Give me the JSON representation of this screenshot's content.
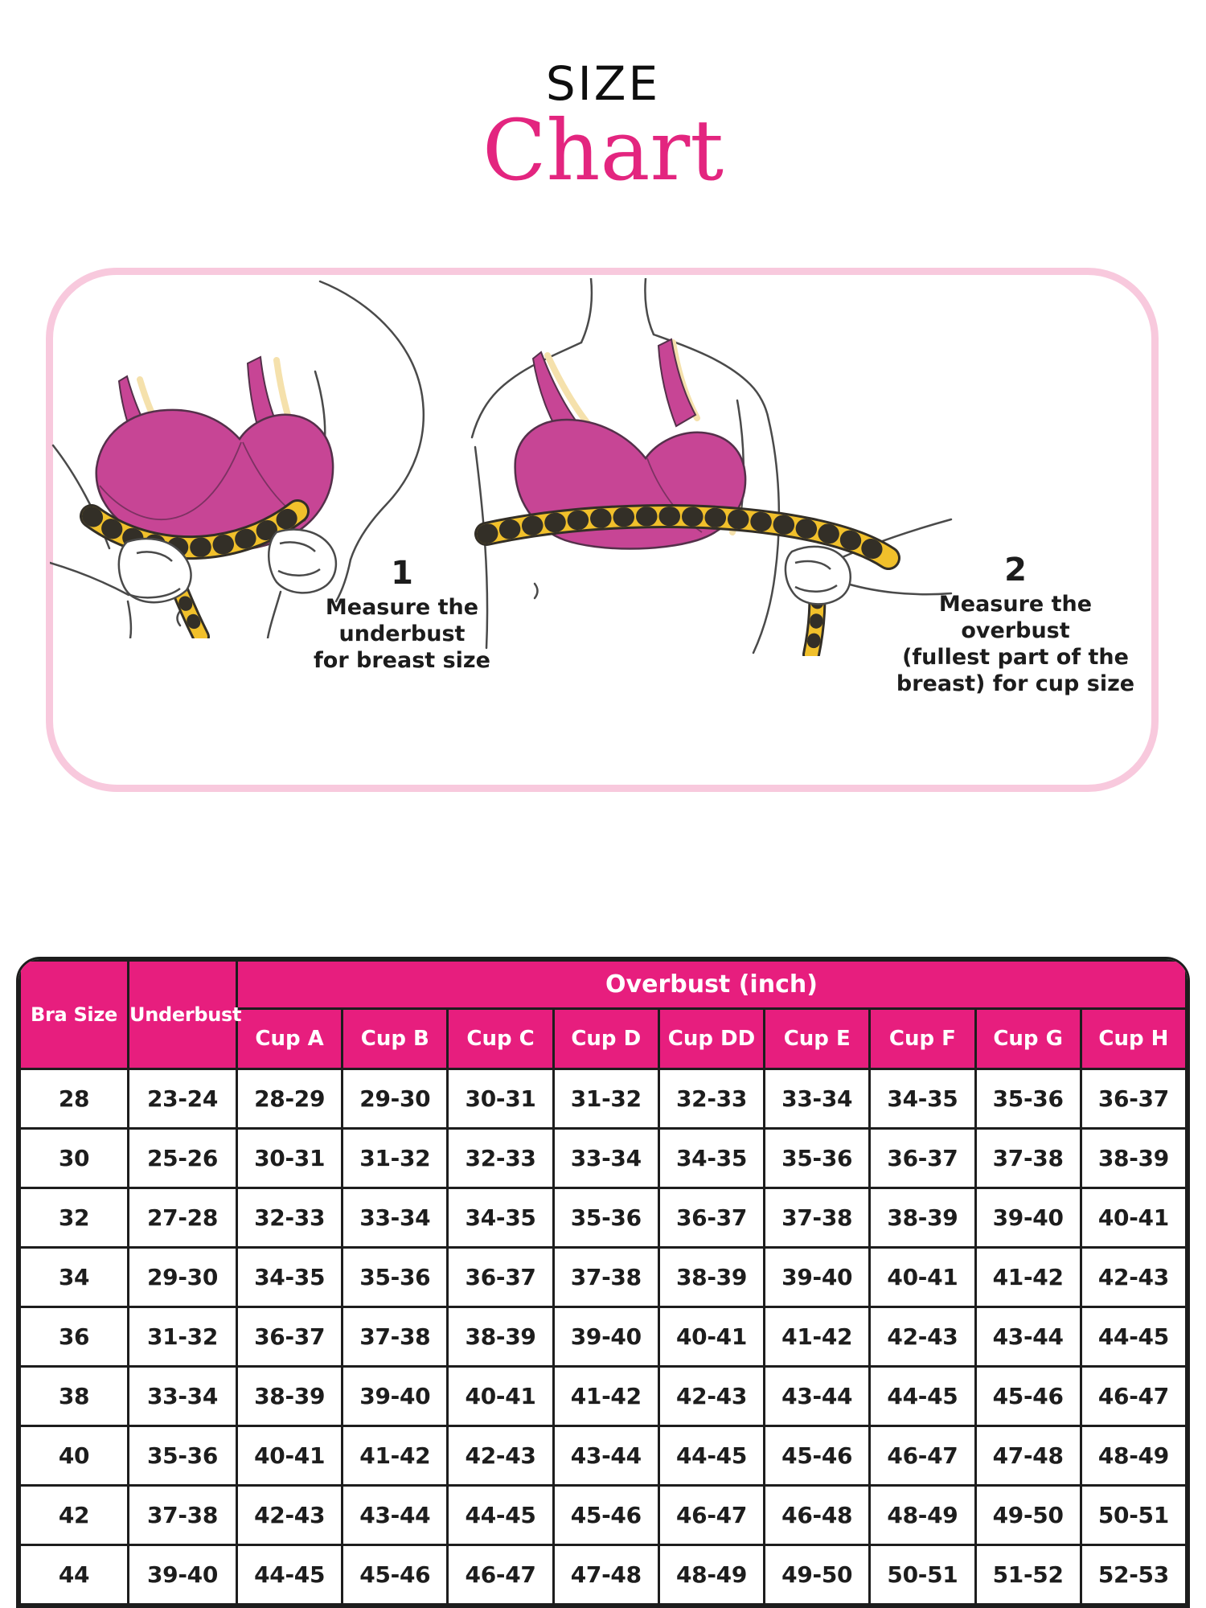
{
  "title": {
    "line1": "SIZE",
    "line2": "Chart"
  },
  "instructions": [
    {
      "number": "1",
      "lines": [
        "Measure the",
        "underbust",
        "for breast size"
      ]
    },
    {
      "number": "2",
      "lines": [
        "Measure the overbust",
        "(fullest part of the",
        "breast) for cup size"
      ]
    }
  ],
  "illustrations": [
    {
      "name": "underbust-measurement-illustration",
      "description": "torso wearing pink bra, hands wrapping yellow measuring tape under the bust"
    },
    {
      "name": "overbust-measurement-illustration",
      "description": "torso wearing pink bra, hand holding yellow measuring tape across fullest part of the bust"
    }
  ],
  "table": {
    "col1_header": "Bra Size",
    "col2_header": "Underbust",
    "span_header": "Overbust (inch)",
    "cup_headers": [
      "Cup A",
      "Cup B",
      "Cup C",
      "Cup D",
      "Cup DD",
      "Cup E",
      "Cup F",
      "Cup G",
      "Cup H"
    ],
    "rows": [
      {
        "bra_size": "28",
        "underbust": "23-24",
        "cups": [
          "28-29",
          "29-30",
          "30-31",
          "31-32",
          "32-33",
          "33-34",
          "34-35",
          "35-36",
          "36-37"
        ]
      },
      {
        "bra_size": "30",
        "underbust": "25-26",
        "cups": [
          "30-31",
          "31-32",
          "32-33",
          "33-34",
          "34-35",
          "35-36",
          "36-37",
          "37-38",
          "38-39"
        ]
      },
      {
        "bra_size": "32",
        "underbust": "27-28",
        "cups": [
          "32-33",
          "33-34",
          "34-35",
          "35-36",
          "36-37",
          "37-38",
          "38-39",
          "39-40",
          "40-41"
        ]
      },
      {
        "bra_size": "34",
        "underbust": "29-30",
        "cups": [
          "34-35",
          "35-36",
          "36-37",
          "37-38",
          "38-39",
          "39-40",
          "40-41",
          "41-42",
          "42-43"
        ]
      },
      {
        "bra_size": "36",
        "underbust": "31-32",
        "cups": [
          "36-37",
          "37-38",
          "38-39",
          "39-40",
          "40-41",
          "41-42",
          "42-43",
          "43-44",
          "44-45"
        ]
      },
      {
        "bra_size": "38",
        "underbust": "33-34",
        "cups": [
          "38-39",
          "39-40",
          "40-41",
          "41-42",
          "42-43",
          "43-44",
          "44-45",
          "45-46",
          "46-47"
        ]
      },
      {
        "bra_size": "40",
        "underbust": "35-36",
        "cups": [
          "40-41",
          "41-42",
          "42-43",
          "43-44",
          "44-45",
          "45-46",
          "46-47",
          "47-48",
          "48-49"
        ]
      },
      {
        "bra_size": "42",
        "underbust": "37-38",
        "cups": [
          "42-43",
          "43-44",
          "44-45",
          "45-46",
          "46-47",
          "46-48",
          "48-49",
          "49-50",
          "50-51"
        ]
      },
      {
        "bra_size": "44",
        "underbust": "39-40",
        "cups": [
          "44-45",
          "45-46",
          "46-47",
          "47-48",
          "48-49",
          "49-50",
          "50-51",
          "51-52",
          "52-53"
        ]
      }
    ]
  },
  "colors": {
    "accent_pink": "#E71E7E",
    "title_pink": "#E3257F",
    "box_border_pink": "#F8C9DD",
    "bra_pink": "#C74595",
    "tape_yellow": "#F1C02B",
    "table_line": "#1d1d1d"
  }
}
